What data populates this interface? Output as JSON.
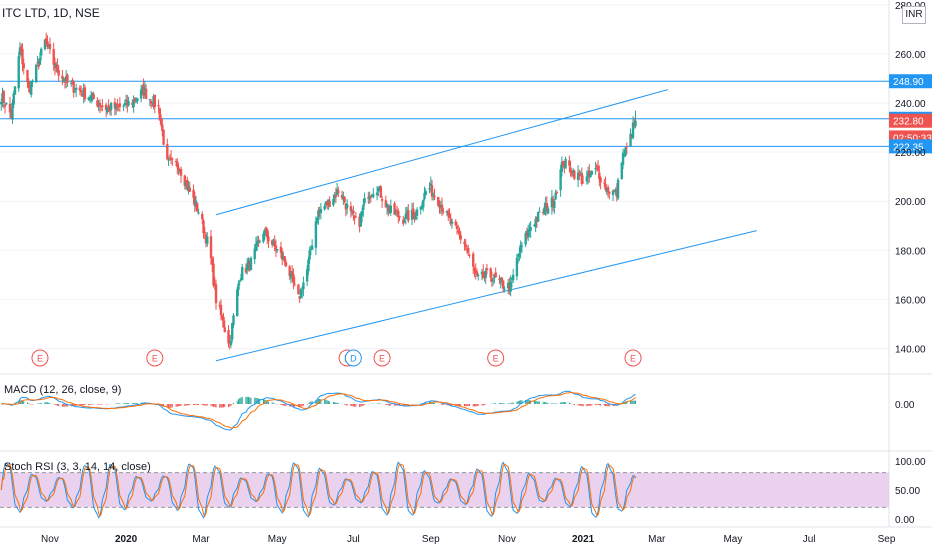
{
  "header": {
    "title": "ITC LTD, 1D, NSE",
    "currency": "INR"
  },
  "colors": {
    "up": "#26a69a",
    "down": "#ef5350",
    "line": "#2196f3",
    "price_level": "#2196f3",
    "last_price": "#ef5350",
    "macd_line": "#2196f3",
    "signal_line": "#ff6d00",
    "stoch_k": "#2196f3",
    "stoch_d": "#ff6d00",
    "stoch_band": "#e1bee7",
    "earnings": "#ef5350"
  },
  "price_axis": {
    "ticks": [
      "280.00",
      "260.00",
      "240.00",
      "220.00",
      "200.00",
      "180.00",
      "160.00",
      "140.00"
    ]
  },
  "price_labels": [
    {
      "value": 248.9,
      "label": "248.90",
      "kind": "level"
    },
    {
      "value": 233.6,
      "label": "233.60",
      "kind": "level"
    },
    {
      "value": 232.8,
      "label": "232.80",
      "kind": "last"
    },
    {
      "value": 226.0,
      "label": "02:50:33",
      "kind": "timer"
    },
    {
      "value": 222.35,
      "label": "222.35",
      "kind": "level"
    }
  ],
  "time_axis": {
    "labels": [
      {
        "label": "Nov",
        "bold": false
      },
      {
        "label": "2020",
        "bold": true
      },
      {
        "label": "Mar",
        "bold": false
      },
      {
        "label": "May",
        "bold": false
      },
      {
        "label": "Jul",
        "bold": false
      },
      {
        "label": "Sep",
        "bold": false
      },
      {
        "label": "Nov",
        "bold": false
      },
      {
        "label": "2021",
        "bold": true
      },
      {
        "label": "Mar",
        "bold": false
      },
      {
        "label": "May",
        "bold": false
      },
      {
        "label": "Jul",
        "bold": false
      },
      {
        "label": "Sep",
        "bold": false
      }
    ]
  },
  "events": [
    {
      "date": "2019-10-24",
      "label": "E"
    },
    {
      "date": "2020-01-24",
      "label": "E"
    },
    {
      "date": "2020-06-26",
      "label": "E"
    },
    {
      "date": "2020-07-01",
      "label": "D"
    },
    {
      "date": "2020-07-24",
      "label": "E"
    },
    {
      "date": "2020-10-23",
      "label": "E"
    },
    {
      "date": "2021-02-10",
      "label": "E"
    }
  ],
  "macd": {
    "label": "MACD (12, 26, close, 9)",
    "ticks": [
      "0.00"
    ]
  },
  "stoch": {
    "label": "Stoch RSI (3, 3, 14, 14, close)",
    "ticks": [
      "100.00",
      "50.00",
      "0.00"
    ],
    "upper": 80,
    "lower": 20
  },
  "chart_data": {
    "type": "candlestick",
    "symbol": "ITC LTD",
    "interval": "1D",
    "exchange": "NSE",
    "ylim": [
      130,
      282
    ],
    "x_range": [
      "2019-09-22",
      "2021-09-03"
    ],
    "horizontal_levels": [
      248.9,
      233.6,
      222.35
    ],
    "trend_lines": [
      {
        "from": [
          "2020-03-13",
          194.5
        ],
        "to": [
          "2021-03-10",
          245.5
        ]
      },
      {
        "from": [
          "2020-03-13",
          135.0
        ],
        "to": [
          "2021-05-20",
          188.0
        ]
      }
    ],
    "last_price": 232.8,
    "waypoints": [
      [
        "2019-09-22",
        244
      ],
      [
        "2019-10-01",
        235
      ],
      [
        "2019-10-08",
        262
      ],
      [
        "2019-10-15",
        245
      ],
      [
        "2019-10-22",
        255
      ],
      [
        "2019-10-28",
        265
      ],
      [
        "2019-11-05",
        255
      ],
      [
        "2019-11-15",
        248
      ],
      [
        "2019-11-25",
        245
      ],
      [
        "2019-12-05",
        242
      ],
      [
        "2019-12-15",
        238
      ],
      [
        "2019-12-25",
        238
      ],
      [
        "2020-01-05",
        240
      ],
      [
        "2020-01-15",
        245
      ],
      [
        "2020-01-27",
        238
      ],
      [
        "2020-02-03",
        215
      ],
      [
        "2020-02-12",
        215
      ],
      [
        "2020-02-20",
        205
      ],
      [
        "2020-02-28",
        196
      ],
      [
        "2020-03-08",
        180
      ],
      [
        "2020-03-13",
        160
      ],
      [
        "2020-03-20",
        148
      ],
      [
        "2020-03-24",
        142
      ],
      [
        "2020-04-01",
        170
      ],
      [
        "2020-04-10",
        175
      ],
      [
        "2020-04-20",
        188
      ],
      [
        "2020-04-28",
        182
      ],
      [
        "2020-05-08",
        175
      ],
      [
        "2020-05-18",
        160
      ],
      [
        "2020-05-25",
        172
      ],
      [
        "2020-06-02",
        195
      ],
      [
        "2020-06-12",
        200
      ],
      [
        "2020-06-20",
        205
      ],
      [
        "2020-06-28",
        195
      ],
      [
        "2020-07-05",
        190
      ],
      [
        "2020-07-12",
        203
      ],
      [
        "2020-07-20",
        206
      ],
      [
        "2020-07-30",
        196
      ],
      [
        "2020-08-10",
        193
      ],
      [
        "2020-08-20",
        195
      ],
      [
        "2020-08-30",
        206
      ],
      [
        "2020-09-08",
        200
      ],
      [
        "2020-09-18",
        190
      ],
      [
        "2020-09-28",
        183
      ],
      [
        "2020-10-08",
        168
      ],
      [
        "2020-10-18",
        170
      ],
      [
        "2020-10-28",
        166
      ],
      [
        "2020-11-04",
        165
      ],
      [
        "2020-11-10",
        178
      ],
      [
        "2020-11-20",
        190
      ],
      [
        "2020-11-30",
        196
      ],
      [
        "2020-12-08",
        200
      ],
      [
        "2020-12-16",
        216
      ],
      [
        "2020-12-24",
        212
      ],
      [
        "2021-01-02",
        208
      ],
      [
        "2021-01-12",
        213
      ],
      [
        "2021-01-20",
        205
      ],
      [
        "2021-01-28",
        203
      ],
      [
        "2021-02-01",
        218
      ],
      [
        "2021-02-06",
        222
      ],
      [
        "2021-02-10",
        230
      ],
      [
        "2021-02-12",
        232.8
      ]
    ]
  }
}
